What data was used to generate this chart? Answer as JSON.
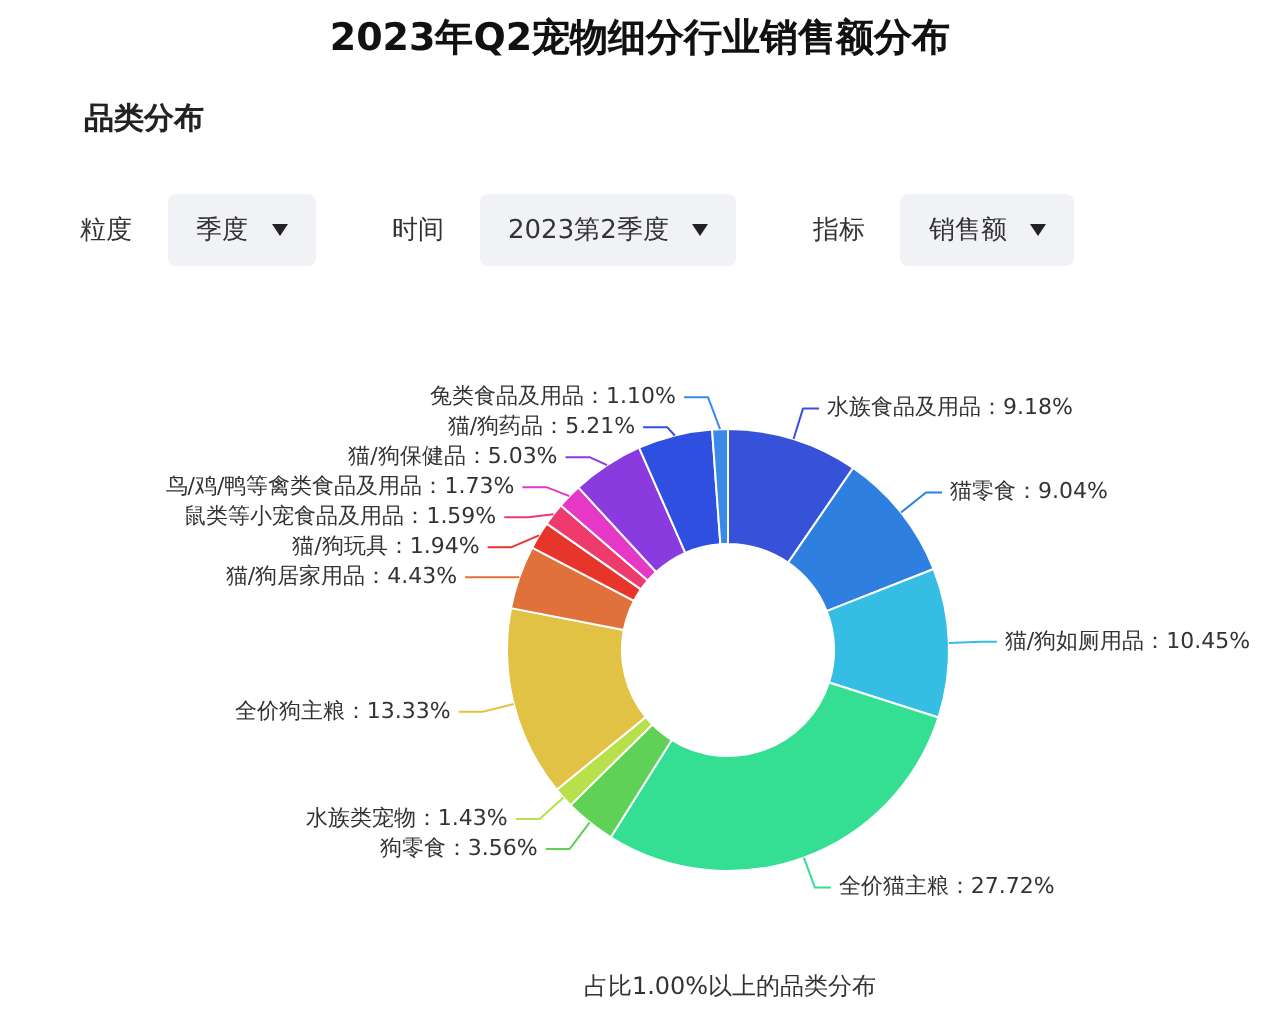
{
  "chart_data": {
    "type": "donut",
    "title": "2023年Q2宠物细分行业销售额分布",
    "subtitle": "品类分布",
    "categories": [
      "水族食品及用品",
      "猫零食",
      "猫/狗如厕用品",
      "全价猫主粮",
      "狗零食",
      "水族类宠物",
      "全价狗主粮",
      "猫/狗居家用品",
      "猫/狗玩具",
      "鼠类等小宠食品及用品",
      "鸟/鸡/鸭等禽类食品及用品",
      "猫/狗保健品",
      "猫/狗药品",
      "兔类食品及用品"
    ],
    "values": [
      9.18,
      9.04,
      10.45,
      27.72,
      3.56,
      1.43,
      13.33,
      4.43,
      1.94,
      1.59,
      1.73,
      5.03,
      5.21,
      1.1
    ],
    "colors": [
      "#3552d8",
      "#2f7fe0",
      "#36bde4",
      "#34de93",
      "#5fd156",
      "#b7e04a",
      "#e2c244",
      "#e0713a",
      "#e8352c",
      "#ef3a6e",
      "#e538c6",
      "#8a3be0",
      "#2e4fe0",
      "#3a8ae8"
    ],
    "value_labels": [
      "：9.18%",
      "：9.04%",
      "：10.45%",
      "：27.72%",
      "：3.56%",
      "：1.43%",
      "：13.33%",
      "：4.43%",
      "：1.94%",
      "：1.59%",
      "：1.73%",
      "：5.03%",
      "：5.21%",
      "：1.10%"
    ],
    "legend": false,
    "annotations": [
      "粒度",
      "季度",
      "时间",
      "2023第2季度",
      "指标",
      "销售额",
      "占比1.00%以上的品类分布"
    ]
  }
}
